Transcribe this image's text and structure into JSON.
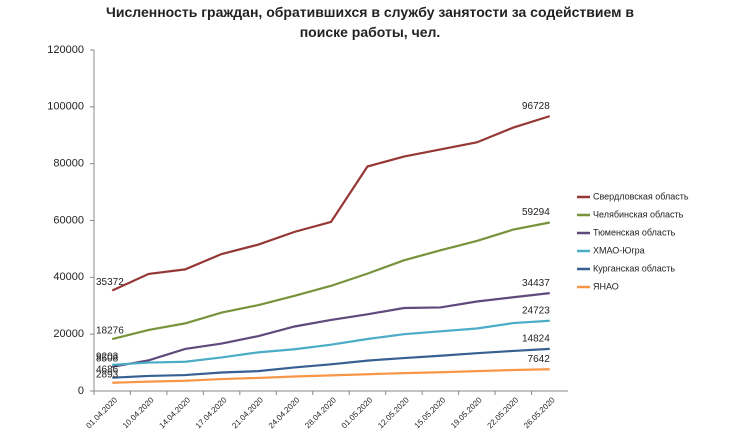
{
  "chart_data": {
    "type": "line",
    "title": "Численность граждан, обратившихся в службу занятости за содействием в поиске работы, чел.",
    "categories": [
      "01.04.2020",
      "10.04.2020",
      "14.04.2020",
      "17.04.2020",
      "21.04.2020",
      "24.04.2020",
      "28.04.2020",
      "01.05.2020",
      "12.05.2020",
      "15.05.2020",
      "19.05.2020",
      "22.05.2020",
      "26.05.2020"
    ],
    "series": [
      {
        "name": "Свердловская область",
        "color": "#953735",
        "values": [
          35372,
          41200,
          42800,
          48200,
          51500,
          56000,
          59500,
          79000,
          82500,
          85000,
          87500,
          92700,
          96728
        ]
      },
      {
        "name": "Челябинская область",
        "color": "#77933c",
        "values": [
          18276,
          21500,
          23800,
          27600,
          30200,
          33500,
          37000,
          41300,
          46000,
          49500,
          52800,
          56800,
          59294
        ]
      },
      {
        "name": "Тюменская область",
        "color": "#604a7b",
        "values": [
          8508,
          10800,
          14800,
          16700,
          19300,
          22700,
          25000,
          27000,
          29200,
          29400,
          31500,
          33000,
          34437
        ]
      },
      {
        "name": "ХМАО-Югра",
        "color": "#4bacc6",
        "values": [
          9203,
          10000,
          10300,
          11800,
          13600,
          14700,
          16300,
          18300,
          20000,
          21000,
          22000,
          23900,
          24723
        ]
      },
      {
        "name": "Курганская область",
        "color": "#376092",
        "values": [
          4686,
          5300,
          5600,
          6500,
          7000,
          8300,
          9400,
          10700,
          11600,
          12400,
          13300,
          14100,
          14824
        ]
      },
      {
        "name": "ЯНАО",
        "color": "#f79646",
        "values": [
          2893,
          3300,
          3600,
          4200,
          4600,
          5100,
          5500,
          5900,
          6300,
          6600,
          7000,
          7400,
          7642
        ]
      }
    ],
    "ylim": [
      0,
      120000
    ],
    "yticks": [
      0,
      20000,
      40000,
      60000,
      80000,
      100000,
      120000
    ],
    "grid": false,
    "legend": "right"
  }
}
